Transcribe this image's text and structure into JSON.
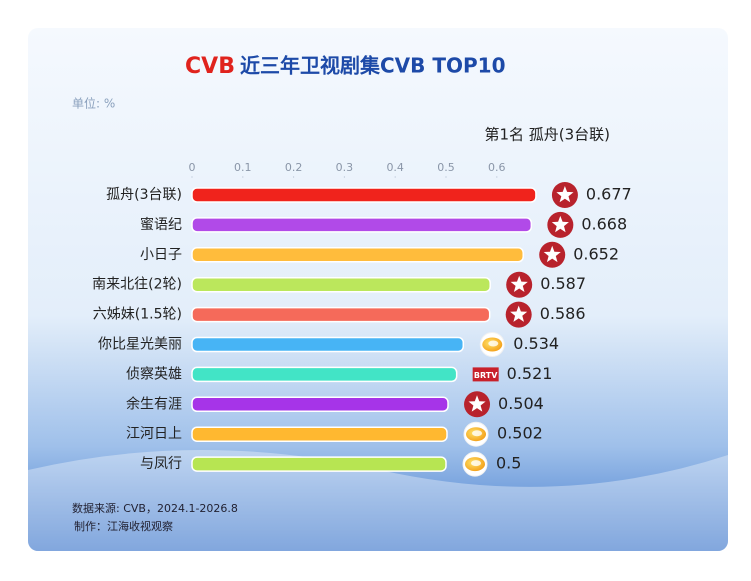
{
  "chart_data": {
    "type": "barh",
    "logo": "CVB",
    "title": "近三年卫视剧集CVB TOP10",
    "unit_label": "单位: %",
    "annotation": "第1名 孤舟(3台联)",
    "categories": [
      "孤舟(3台联)",
      "蜜语纪",
      "小日子",
      "南来北往(2轮)",
      "六姊妹(1.5轮)",
      "你比星光美丽",
      "侦察英雄",
      "余生有涯",
      "江河日上",
      "与凤行"
    ],
    "values": [
      0.677,
      0.668,
      0.652,
      0.587,
      0.586,
      0.534,
      0.521,
      0.504,
      0.502,
      0.5
    ],
    "colors": [
      "#f0231c",
      "#b14ae8",
      "#ffbc3c",
      "#bbe75c",
      "#f56a5a",
      "#47b4f5",
      "#42e4c6",
      "#a634e8",
      "#ffb830",
      "#b7e552"
    ],
    "xlim": [
      0,
      0.7
    ],
    "xticks": [
      0,
      0.1,
      0.2,
      0.3,
      0.4,
      0.5,
      0.6
    ],
    "brtv_logo": "BRTV",
    "source": "数据来源: CVB，2024.1-2026.8",
    "credit": "制作：江海收视观察"
  }
}
